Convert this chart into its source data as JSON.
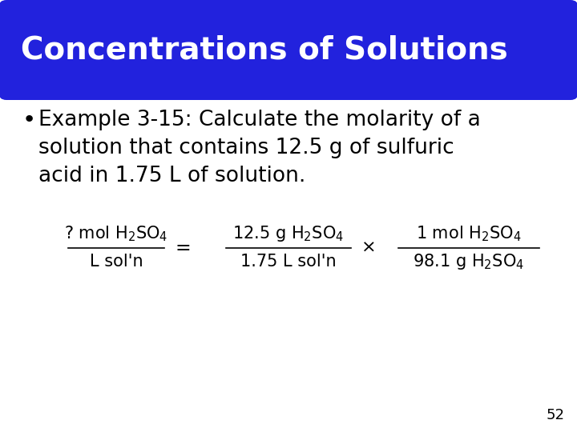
{
  "title": "Concentrations of Solutions",
  "title_bg_color": "#2222DD",
  "title_text_color": "#FFFFFF",
  "title_fontsize": 28,
  "bullet_text_line1": "Example 3-15: Calculate the molarity of a",
  "bullet_text_line2": "solution that contains 12.5 g of sulfuric",
  "bullet_text_line3": "acid in 1.75 L of solution.",
  "bullet_fontsize": 19,
  "background_color": "#FFFFFF",
  "page_number": "52",
  "eq_times": "×",
  "text_color": "#000000",
  "eq_fontsize": 15
}
